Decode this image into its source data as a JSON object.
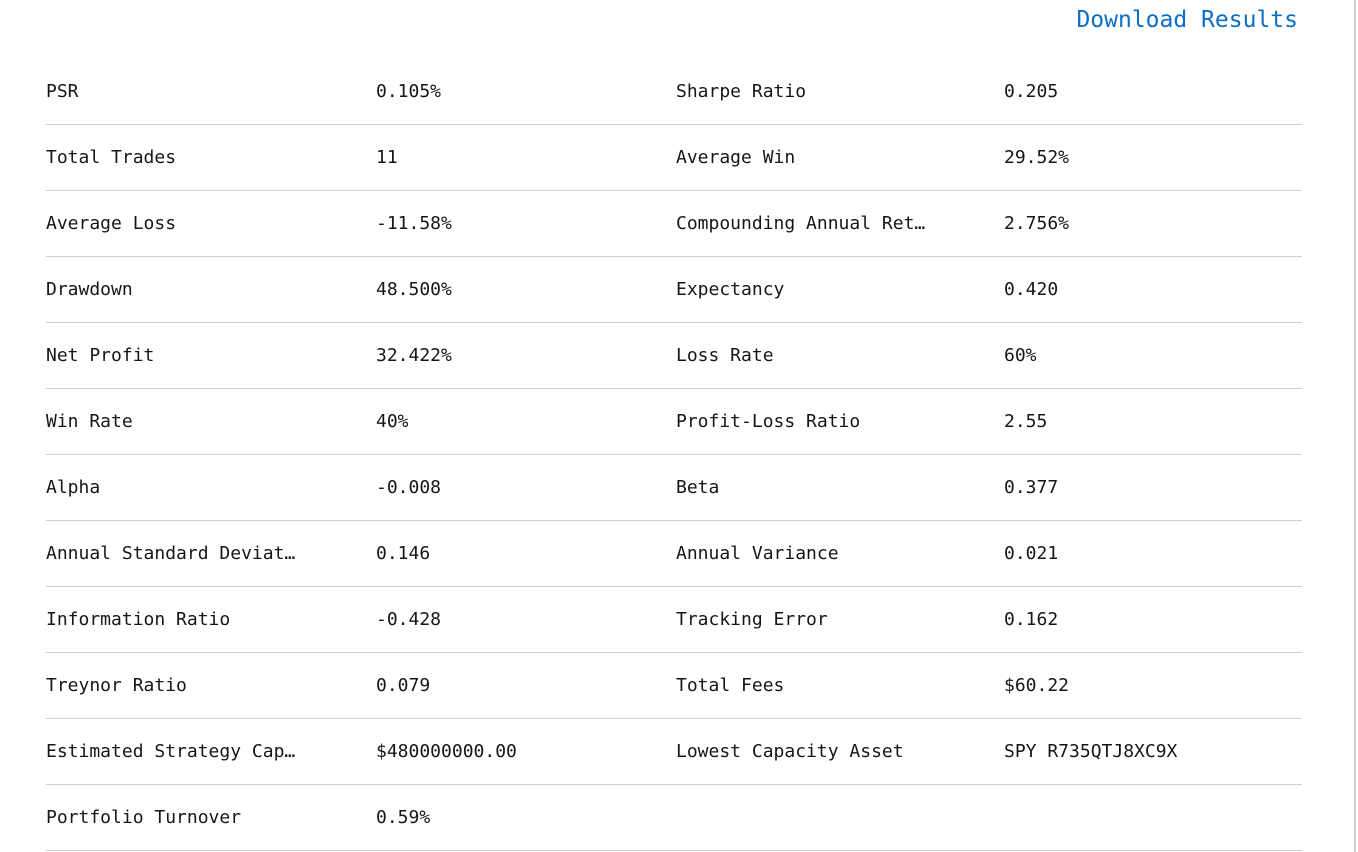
{
  "colors": {
    "link": "#0c6ec6",
    "divider": "#cfcfcf",
    "text": "#161616"
  },
  "header": {
    "download_link": "Download Results"
  },
  "stats": {
    "rows": [
      {
        "label1": "PSR",
        "value1": "0.105%",
        "label2": "Sharpe Ratio",
        "value2": "0.205"
      },
      {
        "label1": "Total Trades",
        "value1": "11",
        "label2": "Average Win",
        "value2": "29.52%"
      },
      {
        "label1": "Average Loss",
        "value1": "-11.58%",
        "label2": "Compounding Annual Ret…",
        "value2": "2.756%"
      },
      {
        "label1": "Drawdown",
        "value1": "48.500%",
        "label2": "Expectancy",
        "value2": "0.420"
      },
      {
        "label1": "Net Profit",
        "value1": "32.422%",
        "label2": "Loss Rate",
        "value2": "60%"
      },
      {
        "label1": "Win Rate",
        "value1": "40%",
        "label2": "Profit-Loss Ratio",
        "value2": "2.55"
      },
      {
        "label1": "Alpha",
        "value1": "-0.008",
        "label2": "Beta",
        "value2": "0.377"
      },
      {
        "label1": "Annual Standard Deviat…",
        "value1": "0.146",
        "label2": "Annual Variance",
        "value2": "0.021"
      },
      {
        "label1": "Information Ratio",
        "value1": "-0.428",
        "label2": "Tracking Error",
        "value2": "0.162"
      },
      {
        "label1": "Treynor Ratio",
        "value1": "0.079",
        "label2": "Total Fees",
        "value2": "$60.22"
      },
      {
        "label1": "Estimated Strategy Cap…",
        "value1": "$480000000.00",
        "label2": "Lowest Capacity Asset",
        "value2": "SPY R735QTJ8XC9X"
      },
      {
        "label1": "Portfolio Turnover",
        "value1": "0.59%",
        "label2": "",
        "value2": ""
      }
    ]
  }
}
